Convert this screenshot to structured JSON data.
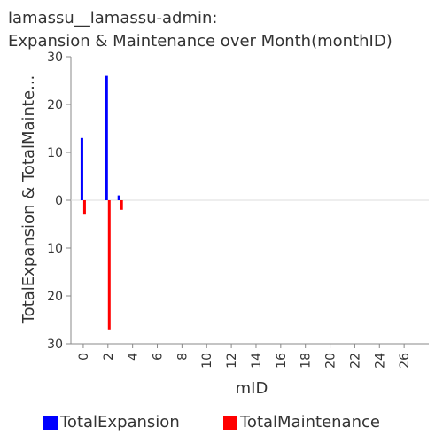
{
  "chart_data": {
    "type": "bar",
    "title_line1": "lamassu__lamassu-admin:",
    "title_line2": "Expansion & Maintenance over Month(monthID)",
    "xlabel": "mID",
    "ylabel": "TotalExpansion & TotalMainte...",
    "x_ticks": [
      "0",
      "2",
      "4",
      "6",
      "8",
      "10",
      "12",
      "14",
      "16",
      "18",
      "20",
      "22",
      "24",
      "26"
    ],
    "y_tick_labels": [
      "30",
      "20",
      "10",
      "0",
      "10",
      "20",
      "30"
    ],
    "xlim": [
      -1,
      28
    ],
    "ylim": [
      -30,
      30
    ],
    "grid": false,
    "legend_position": "bottom",
    "series": [
      {
        "name": "TotalExpansion",
        "color": "#0000ff",
        "direction": "up",
        "x": [
          0,
          2,
          3
        ],
        "values": [
          13,
          26,
          1
        ]
      },
      {
        "name": "TotalMaintenance",
        "color": "#ff0000",
        "direction": "down",
        "x": [
          0,
          2,
          3
        ],
        "values": [
          3,
          27,
          2
        ]
      }
    ]
  }
}
